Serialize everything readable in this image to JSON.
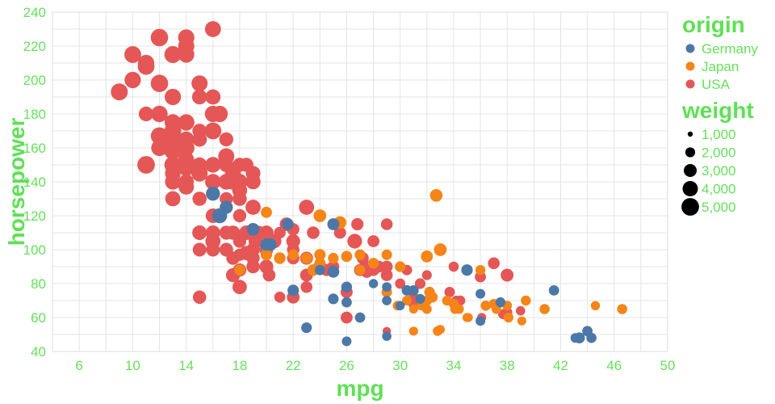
{
  "chart_data": {
    "type": "scatter",
    "xlabel": "mpg",
    "ylabel": "horsepower",
    "xlim": [
      4,
      50
    ],
    "ylim": [
      40,
      240
    ],
    "xticks": [
      6,
      10,
      14,
      18,
      22,
      26,
      30,
      34,
      38,
      42,
      46,
      50
    ],
    "yticks": [
      40,
      60,
      80,
      100,
      120,
      140,
      160,
      180,
      200,
      220,
      240
    ],
    "grid": true,
    "legend": {
      "placement": "right",
      "color_title": "origin",
      "size_title": "weight",
      "color_entries": [
        {
          "name": "Germany",
          "color": "#4c78a8"
        },
        {
          "name": "Japan",
          "color": "#f58518"
        },
        {
          "name": "USA",
          "color": "#e45756"
        }
      ],
      "size_entries": [
        {
          "label": "1,000",
          "value": 1000
        },
        {
          "label": "2,000",
          "value": 2000
        },
        {
          "label": "3,000",
          "value": 3000
        },
        {
          "label": "4,000",
          "value": 4000
        },
        {
          "label": "5,000",
          "value": 5000
        }
      ]
    },
    "series": [
      {
        "name": "USA",
        "color": "#e45756",
        "points": [
          [
            9,
            193,
            4732
          ],
          [
            10,
            215,
            4615
          ],
          [
            10,
            200,
            4376
          ],
          [
            11,
            210,
            4382
          ],
          [
            11,
            208,
            4633
          ],
          [
            11,
            180,
            3664
          ],
          [
            11,
            150,
            4997
          ],
          [
            12,
            225,
            4951
          ],
          [
            12,
            198,
            4952
          ],
          [
            12,
            180,
            4499
          ],
          [
            12,
            167,
            4906
          ],
          [
            12,
            160,
            4456
          ],
          [
            13,
            215,
            4735
          ],
          [
            13,
            190,
            4422
          ],
          [
            13,
            175,
            4464
          ],
          [
            13,
            170,
            4654
          ],
          [
            13,
            165,
            4274
          ],
          [
            13,
            160,
            4385
          ],
          [
            13,
            158,
            4668
          ],
          [
            13,
            150,
            4699
          ],
          [
            13,
            145,
            4082
          ],
          [
            13,
            140,
            4140
          ],
          [
            13,
            130,
            3870
          ],
          [
            14,
            225,
            4425
          ],
          [
            14,
            220,
            4354
          ],
          [
            14,
            215,
            4312
          ],
          [
            14,
            175,
            4385
          ],
          [
            14,
            165,
            4209
          ],
          [
            14,
            160,
            4464
          ],
          [
            14,
            153,
            4154
          ],
          [
            14,
            150,
            4077
          ],
          [
            14,
            148,
            4096
          ],
          [
            14,
            137,
            4042
          ],
          [
            14,
            140,
            3892
          ],
          [
            15,
            198,
            4341
          ],
          [
            15,
            190,
            3850
          ],
          [
            15,
            170,
            3563
          ],
          [
            15,
            165,
            3693
          ],
          [
            15,
            150,
            3761
          ],
          [
            15,
            145,
            4440
          ],
          [
            15,
            130,
            3504
          ],
          [
            15,
            110,
            3730
          ],
          [
            15,
            100,
            3336
          ],
          [
            15,
            72,
            3158
          ],
          [
            16,
            230,
            4278
          ],
          [
            16,
            190,
            3892
          ],
          [
            16,
            180,
            4380
          ],
          [
            16,
            170,
            4668
          ],
          [
            16,
            150,
            4129
          ],
          [
            16,
            140,
            4215
          ],
          [
            16,
            120,
            3632
          ],
          [
            16,
            110,
            3632
          ],
          [
            16,
            105,
            3897
          ],
          [
            16,
            100,
            3278
          ],
          [
            16.5,
            180,
            4380
          ],
          [
            17,
            165,
            3445
          ],
          [
            17,
            155,
            4360
          ],
          [
            17,
            150,
            3672
          ],
          [
            17,
            140,
            4141
          ],
          [
            17,
            130,
            3150
          ],
          [
            17,
            110,
            3365
          ],
          [
            17,
            100,
            3329
          ],
          [
            17.5,
            145,
            4215
          ],
          [
            17.5,
            140,
            4080
          ],
          [
            17.5,
            110,
            3520
          ],
          [
            17.5,
            95,
            3193
          ],
          [
            17.5,
            85,
            3465
          ],
          [
            18,
            150,
            3436
          ],
          [
            18,
            140,
            4080
          ],
          [
            18,
            135,
            3830
          ],
          [
            18,
            130,
            3504
          ],
          [
            18,
            120,
            3121
          ],
          [
            18,
            105,
            3121
          ],
          [
            18,
            97,
            2774
          ],
          [
            18,
            88,
            3139
          ],
          [
            18,
            78,
            3574
          ],
          [
            18.5,
            150,
            3439
          ],
          [
            18.5,
            110,
            3645
          ],
          [
            18.5,
            98,
            3525
          ],
          [
            19,
            145,
            3730
          ],
          [
            19,
            140,
            3830
          ],
          [
            19,
            125,
            3900
          ],
          [
            19,
            100,
            3310
          ],
          [
            19,
            95,
            3102
          ],
          [
            19,
            90,
            3211
          ],
          [
            19.2,
            105,
            3535
          ],
          [
            19.4,
            110,
            3360
          ],
          [
            20,
            110,
            3570
          ],
          [
            20,
            100,
            3329
          ],
          [
            20,
            90,
            3381
          ],
          [
            20.2,
            85,
            2965
          ],
          [
            20.5,
            105,
            3425
          ],
          [
            20.6,
            105,
            3380
          ],
          [
            21,
            110,
            2587
          ],
          [
            21,
            72,
            2401
          ],
          [
            21.5,
            115,
            3245
          ],
          [
            22,
            112,
            2835
          ],
          [
            22,
            105,
            3353
          ],
          [
            22,
            100,
            2800
          ],
          [
            22,
            95,
            2833
          ],
          [
            22,
            72,
            2945
          ],
          [
            23,
            125,
            3900
          ],
          [
            23,
            95,
            3085
          ],
          [
            23,
            85,
            3015
          ],
          [
            23,
            78,
            2592
          ],
          [
            23.5,
            110,
            2905
          ],
          [
            24,
            90,
            3085
          ],
          [
            24.5,
            88,
            2740
          ],
          [
            25,
            90,
            2648
          ],
          [
            25.5,
            110,
            2720
          ],
          [
            26,
            75,
            2735
          ],
          [
            26,
            60,
            2650
          ],
          [
            26.6,
            105,
            3725
          ],
          [
            26.8,
            115,
            2795
          ],
          [
            27,
            88,
            2720
          ],
          [
            27.2,
            95,
            2700
          ],
          [
            27.4,
            90,
            2950
          ],
          [
            27.5,
            87,
            2755
          ],
          [
            28,
            105,
            2670
          ],
          [
            28,
            88,
            2640
          ],
          [
            28.4,
            90,
            2670
          ],
          [
            29,
            115,
            2595
          ],
          [
            29,
            90,
            2640
          ],
          [
            29,
            85,
            2670
          ],
          [
            29,
            52,
            1649
          ],
          [
            30,
            80,
            2155
          ],
          [
            30.5,
            88,
            2190
          ],
          [
            31,
            72,
            2075
          ],
          [
            31,
            68,
            2130
          ],
          [
            31.5,
            80,
            2220
          ],
          [
            32,
            85,
            2020
          ],
          [
            33.7,
            75,
            2210
          ],
          [
            34,
            90,
            2110
          ],
          [
            34.2,
            70,
            2030
          ],
          [
            34.5,
            70,
            2045
          ],
          [
            35,
            88,
            2020
          ],
          [
            36,
            84,
            2370
          ],
          [
            36.1,
            60,
            1800
          ],
          [
            37,
            92,
            2585
          ],
          [
            37.7,
            62,
            2050
          ],
          [
            38,
            85,
            3015
          ],
          [
            38,
            63,
            2125
          ],
          [
            39,
            64,
            1875
          ]
        ]
      },
      {
        "name": "Japan",
        "color": "#f58518",
        "points": [
          [
            18,
            88,
            2279
          ],
          [
            20,
            122,
            2379
          ],
          [
            20,
            97,
            2506
          ],
          [
            21,
            95,
            2545
          ],
          [
            22,
            97,
            2300
          ],
          [
            23,
            95,
            2372
          ],
          [
            23.5,
            88,
            2525
          ],
          [
            24,
            120,
            2930
          ],
          [
            24,
            97,
            2489
          ],
          [
            24,
            92,
            2375
          ],
          [
            25,
            95,
            2265
          ],
          [
            25.5,
            116,
            2900
          ],
          [
            26,
            96,
            2408
          ],
          [
            27,
            97,
            2300
          ],
          [
            27,
            88,
            2130
          ],
          [
            28,
            92,
            2288
          ],
          [
            29,
            97,
            2189
          ],
          [
            29,
            75,
            2171
          ],
          [
            29.8,
            67,
            1925
          ],
          [
            30,
            90,
            2265
          ],
          [
            30.5,
            70,
            1955
          ],
          [
            31,
            65,
            1773
          ],
          [
            31,
            52,
            1795
          ],
          [
            31.6,
            67,
            1965
          ],
          [
            32,
            96,
            2665
          ],
          [
            32,
            70,
            2120
          ],
          [
            32,
            65,
            1985
          ],
          [
            32.2,
            75,
            2265
          ],
          [
            32.4,
            72,
            2290
          ],
          [
            32.7,
            132,
            2910
          ],
          [
            32.8,
            52,
            1985
          ],
          [
            33,
            100,
            2945
          ],
          [
            33,
            53,
            1795
          ],
          [
            33.5,
            70,
            1990
          ],
          [
            34,
            68,
            2050
          ],
          [
            34.1,
            65,
            1975
          ],
          [
            34.4,
            65,
            1950
          ],
          [
            35,
            60,
            1800
          ],
          [
            35.1,
            60,
            1760
          ],
          [
            36,
            88,
            2050
          ],
          [
            36.4,
            67,
            2100
          ],
          [
            37,
            68,
            2045
          ],
          [
            37.2,
            65,
            1970
          ],
          [
            38,
            67,
            1965
          ],
          [
            38.1,
            60,
            2025
          ],
          [
            39.1,
            58,
            1755
          ],
          [
            39.4,
            70,
            2070
          ],
          [
            40.8,
            65,
            2110
          ],
          [
            44.6,
            67,
            1850
          ],
          [
            46.6,
            65,
            2110
          ]
        ]
      },
      {
        "name": "Germany",
        "color": "#4c78a8",
        "points": [
          [
            16,
            133,
            3410
          ],
          [
            16.5,
            120,
            3820
          ],
          [
            17,
            125,
            3140
          ],
          [
            19,
            112,
            2868
          ],
          [
            20,
            103,
            2830
          ],
          [
            20.3,
            103,
            2830
          ],
          [
            21.6,
            115,
            2600
          ],
          [
            22,
            76,
            2511
          ],
          [
            23,
            54,
            2254
          ],
          [
            24,
            88,
            2164
          ],
          [
            25,
            115,
            2671
          ],
          [
            25,
            87,
            2672
          ],
          [
            25,
            71,
            2223
          ],
          [
            26,
            46,
            1950
          ],
          [
            26,
            78,
            2300
          ],
          [
            26,
            69,
            2164
          ],
          [
            27,
            60,
            2130
          ],
          [
            28,
            80,
            1835
          ],
          [
            29,
            49,
            1867
          ],
          [
            29,
            78,
            1940
          ],
          [
            29,
            70,
            1937
          ],
          [
            30,
            67,
            1850
          ],
          [
            30.5,
            76,
            2190
          ],
          [
            31,
            76,
            2144
          ],
          [
            31.5,
            71,
            1990
          ],
          [
            35,
            88,
            2500
          ],
          [
            36,
            74,
            1980
          ],
          [
            36,
            58,
            1975
          ],
          [
            37.5,
            69,
            2065
          ],
          [
            41.5,
            76,
            2144
          ],
          [
            43.1,
            48,
            1985
          ],
          [
            43.4,
            48,
            2335
          ],
          [
            44,
            52,
            2130
          ],
          [
            44.3,
            48,
            2085
          ]
        ]
      }
    ]
  }
}
